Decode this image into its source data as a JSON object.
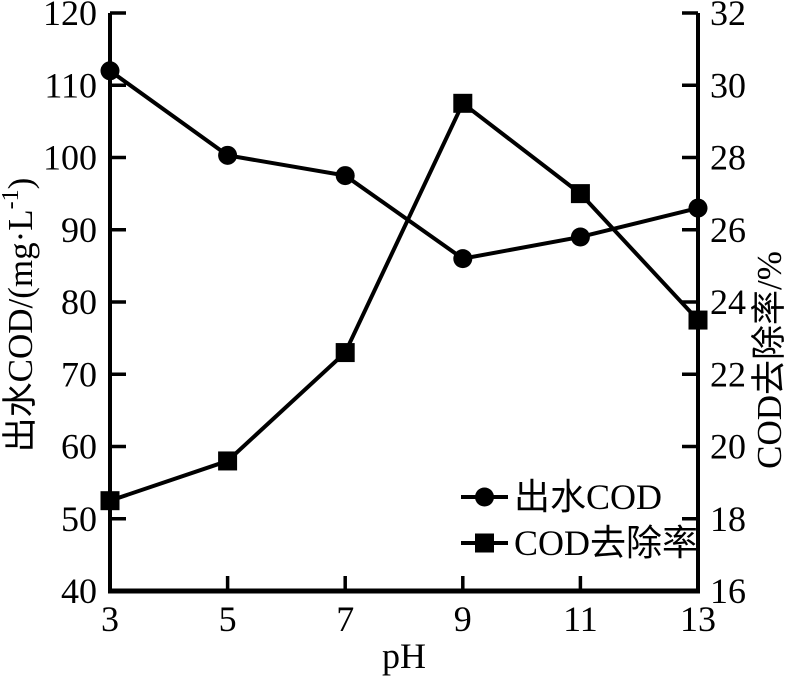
{
  "page": {
    "background": "#ffffff",
    "ink_color": "#000000"
  },
  "chart_data": {
    "type": "line",
    "title": "",
    "xlabel": "pH",
    "x": [
      3,
      5,
      7,
      9,
      11,
      13
    ],
    "x_tick_labels": [
      "3",
      "5",
      "7",
      "9",
      "11",
      "13"
    ],
    "axes": {
      "left": {
        "label": "出水COD/(mg·L⁻¹)",
        "min": 40,
        "max": 120,
        "tick_step": 10,
        "ticks": [
          40,
          50,
          60,
          70,
          80,
          90,
          100,
          110,
          120
        ]
      },
      "right": {
        "label": "COD去除率/%",
        "min": 16,
        "max": 32,
        "tick_step": 2,
        "ticks": [
          16,
          18,
          20,
          22,
          24,
          26,
          28,
          30,
          32
        ]
      }
    },
    "series": [
      {
        "name": "出水COD",
        "axis": "left",
        "marker": "circle",
        "color": "#000000",
        "values": [
          112,
          100.3,
          97.5,
          86,
          89,
          93
        ]
      },
      {
        "name": "COD去除率",
        "axis": "right",
        "marker": "square",
        "color": "#000000",
        "values": [
          18.5,
          19.6,
          22.6,
          29.5,
          27.0,
          23.5
        ]
      }
    ],
    "legend": {
      "position": "inside-lower-right",
      "items": [
        "出水COD",
        "COD去除率"
      ]
    },
    "grid": false
  }
}
